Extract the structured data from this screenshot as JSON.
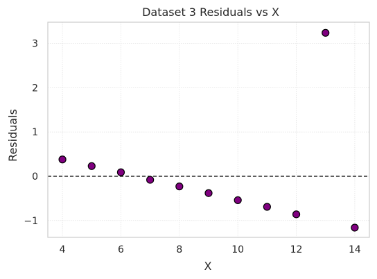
{
  "chart_data": {
    "type": "scatter",
    "title": "Dataset 3 Residuals vs X",
    "xlabel": "X",
    "ylabel": "Residuals",
    "xlim": [
      3.5,
      14.5
    ],
    "ylim": [
      -1.38,
      3.48
    ],
    "xticks": [
      4,
      6,
      8,
      10,
      12,
      14
    ],
    "yticks": [
      -1,
      0,
      1,
      2,
      3
    ],
    "ytick_labels": [
      "−1",
      "0",
      "1",
      "2",
      "3"
    ],
    "grid": true,
    "reference_line": {
      "y": 0,
      "style": "dashed",
      "color": "#000000"
    },
    "marker": {
      "fill": "#800080",
      "edge": "#000000"
    },
    "points": [
      {
        "x": 4,
        "y": 0.38
      },
      {
        "x": 5,
        "y": 0.23
      },
      {
        "x": 6,
        "y": 0.09
      },
      {
        "x": 7,
        "y": -0.08
      },
      {
        "x": 8,
        "y": -0.23
      },
      {
        "x": 9,
        "y": -0.38
      },
      {
        "x": 10,
        "y": -0.54
      },
      {
        "x": 11,
        "y": -0.69
      },
      {
        "x": 12,
        "y": -0.86
      },
      {
        "x": 13,
        "y": 3.24
      },
      {
        "x": 14,
        "y": -1.16
      }
    ]
  }
}
